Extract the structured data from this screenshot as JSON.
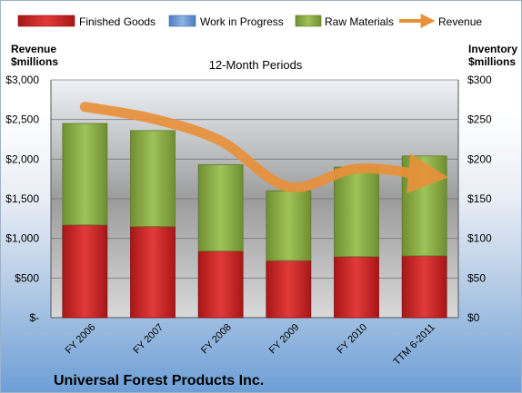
{
  "chart_data": {
    "type": "bar",
    "title": "12-Month Periods",
    "company": "Universal Forest Products Inc.",
    "left_axis_title": [
      "Revenue",
      "$millions"
    ],
    "right_axis_title": [
      "Inventory",
      "$millions"
    ],
    "categories": [
      "FY 2006",
      "FY 2007",
      "FY 2008",
      "FY 2009",
      "FY 2010",
      "TTM 6-2011"
    ],
    "left_ticks": [
      "$-",
      "$500",
      "$1,000",
      "$1,500",
      "$2,000",
      "$2,500",
      "$3,000"
    ],
    "right_ticks": [
      "$0",
      "$50",
      "$100",
      "$150",
      "$200",
      "$250",
      "$300"
    ],
    "ylim_left": [
      0,
      3000
    ],
    "ylim_right": [
      0,
      300
    ],
    "grid": true,
    "legend_position": "top",
    "stacked": true,
    "series": [
      {
        "name": "Finished Goods",
        "axis": "right",
        "color": "#d42a2a",
        "values": [
          117,
          115,
          84,
          72,
          77,
          78
        ]
      },
      {
        "name": "Work in Progress",
        "axis": "right",
        "color": "#6e9bd3",
        "values": [
          0,
          0,
          0,
          0,
          0,
          0
        ]
      },
      {
        "name": "Raw Materials",
        "axis": "right",
        "color": "#8fb24a",
        "values": [
          128,
          121,
          109,
          88,
          113,
          126
        ]
      },
      {
        "name": "Revenue",
        "axis": "left",
        "type": "line",
        "color": "#e8913a",
        "values": [
          2660,
          2510,
          2230,
          1650,
          1880,
          1800
        ]
      }
    ]
  }
}
